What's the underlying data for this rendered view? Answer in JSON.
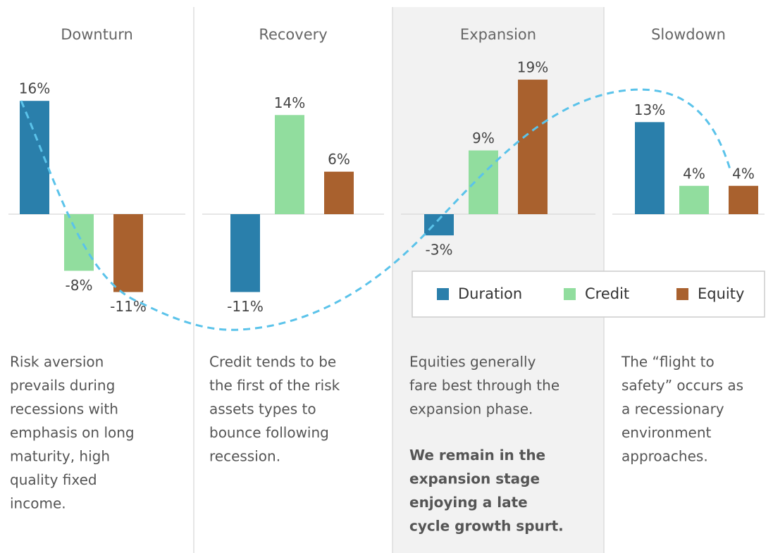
{
  "chart_data": {
    "type": "bar",
    "categories": [
      "Downturn",
      "Recovery",
      "Expansion",
      "Slowdown"
    ],
    "series": [
      {
        "name": "Duration",
        "color": "#2a7fab",
        "values": [
          16,
          -11,
          -3,
          13
        ],
        "value_labels": [
          "16%",
          "-11%",
          "-3%",
          "13%"
        ]
      },
      {
        "name": "Credit",
        "color": "#91dd9e",
        "values": [
          -8,
          14,
          9,
          4
        ],
        "value_labels": [
          "-8%",
          "14%",
          "9%",
          "4%"
        ]
      },
      {
        "name": "Equity",
        "color": "#a9612e",
        "values": [
          -11,
          6,
          19,
          4
        ],
        "value_labels": [
          "-11%",
          "6%",
          "19%",
          "4%"
        ]
      }
    ],
    "panel_texts": [
      {
        "lines": [
          "Risk aversion",
          "prevails during",
          "recessions with",
          "emphasis on long",
          "maturity, high",
          "quality fixed",
          "income."
        ]
      },
      {
        "lines": [
          "Credit tends to be",
          "the first of the risk",
          "assets types to",
          "bounce following",
          "recession."
        ]
      },
      {
        "lines": [
          "Equities generally",
          "fare best through the",
          "expansion phase."
        ],
        "bold_lines": [
          "We remain in the",
          "expansion stage",
          "enjoying a late",
          "cycle growth spurt."
        ]
      },
      {
        "lines": [
          "The “flight to",
          "safety” occurs as",
          "a recessionary",
          "environment",
          "approaches."
        ]
      }
    ],
    "highlight": "Expansion",
    "legend": "right"
  }
}
